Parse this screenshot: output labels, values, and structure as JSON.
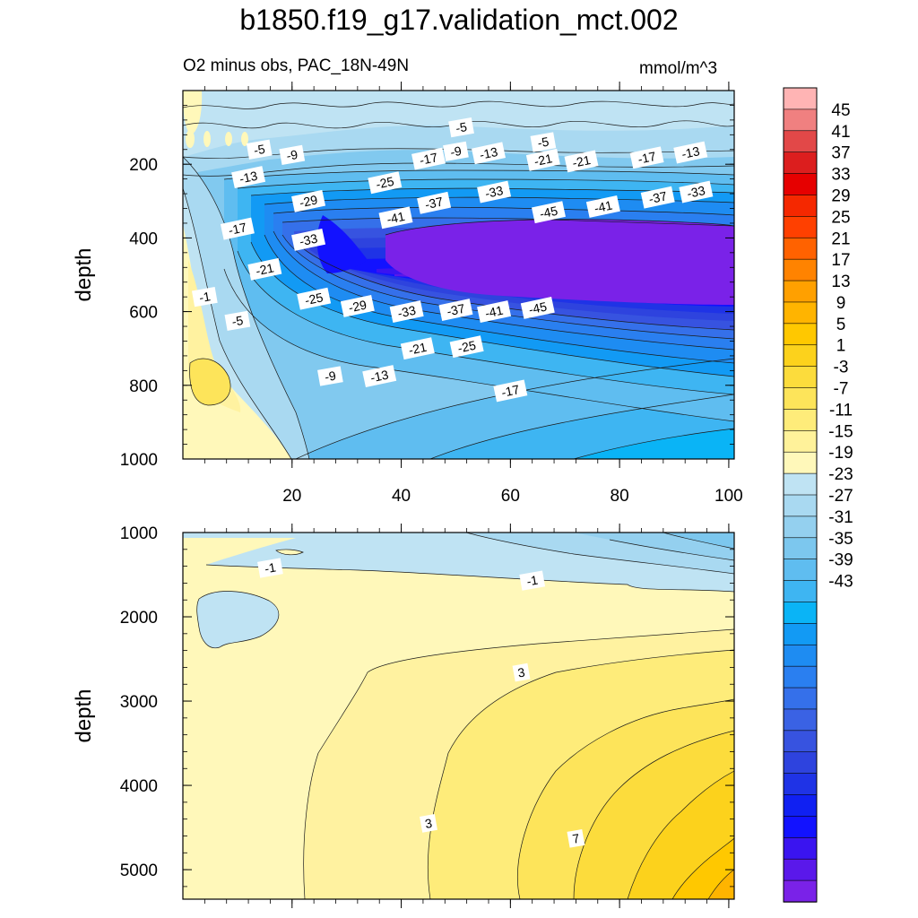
{
  "chart_data": [
    {
      "type": "contour",
      "title": "b1850.f19_g17.validation_mct.002",
      "subtitle": "O2 minus obs, PAC_18N-49N",
      "units": "mmol/m^3",
      "ylabel": "depth",
      "xlabel": "",
      "panels": [
        {
          "name": "upper",
          "ylim": [
            0,
            1000
          ],
          "y_reversed": true,
          "xlim": [
            0,
            101
          ],
          "y_ticks": [
            200,
            400,
            600,
            800,
            1000
          ],
          "x_ticks": [
            20,
            40,
            60,
            80,
            100
          ],
          "contour_labels": [
            {
              "x": 51,
              "y": 100,
              "text": "-5"
            },
            {
              "x": 66,
              "y": 140,
              "text": "-5"
            },
            {
              "x": 14,
              "y": 160,
              "text": "-5"
            },
            {
              "x": 20,
              "y": 175,
              "text": "-9"
            },
            {
              "x": 50,
              "y": 165,
              "text": "-9"
            },
            {
              "x": 56,
              "y": 170,
              "text": "-13"
            },
            {
              "x": 93,
              "y": 168,
              "text": "-13"
            },
            {
              "x": 12,
              "y": 235,
              "text": "-13"
            },
            {
              "x": 45,
              "y": 185,
              "text": "-17"
            },
            {
              "x": 85,
              "y": 182,
              "text": "-17"
            },
            {
              "x": 66,
              "y": 188,
              "text": "-21"
            },
            {
              "x": 73,
              "y": 192,
              "text": "-21"
            },
            {
              "x": 37,
              "y": 250,
              "text": "-25"
            },
            {
              "x": 23,
              "y": 300,
              "text": "-29"
            },
            {
              "x": 57,
              "y": 275,
              "text": "-33"
            },
            {
              "x": 94,
              "y": 275,
              "text": "-33"
            },
            {
              "x": 46,
              "y": 305,
              "text": "-37"
            },
            {
              "x": 87,
              "y": 290,
              "text": "-37"
            },
            {
              "x": 39,
              "y": 345,
              "text": "-41"
            },
            {
              "x": 77,
              "y": 315,
              "text": "-41"
            },
            {
              "x": 67,
              "y": 330,
              "text": "-45"
            },
            {
              "x": 10,
              "y": 375,
              "text": "-17"
            },
            {
              "x": 23,
              "y": 405,
              "text": "-33"
            },
            {
              "x": 15,
              "y": 485,
              "text": "-21"
            },
            {
              "x": 24,
              "y": 565,
              "text": "-25"
            },
            {
              "x": 32,
              "y": 585,
              "text": "-29"
            },
            {
              "x": 41,
              "y": 600,
              "text": "-33"
            },
            {
              "x": 50,
              "y": 595,
              "text": "-37"
            },
            {
              "x": 57,
              "y": 600,
              "text": "-41"
            },
            {
              "x": 65,
              "y": 590,
              "text": "-45"
            },
            {
              "x": 4,
              "y": 560,
              "text": "-1"
            },
            {
              "x": 10,
              "y": 625,
              "text": "-5"
            },
            {
              "x": 43,
              "y": 700,
              "text": "-21"
            },
            {
              "x": 52,
              "y": 695,
              "text": "-25"
            },
            {
              "x": 27,
              "y": 775,
              "text": "-9"
            },
            {
              "x": 36,
              "y": 775,
              "text": "-13"
            },
            {
              "x": 60,
              "y": 815,
              "text": "-17"
            }
          ]
        },
        {
          "name": "lower",
          "ylim": [
            1000,
            5350
          ],
          "y_reversed": true,
          "xlim": [
            0,
            101
          ],
          "y_ticks": [
            1000,
            2000,
            3000,
            4000,
            5000
          ],
          "x_ticks": [
            20,
            40,
            60,
            80,
            100
          ],
          "contour_labels": [
            {
              "x": 16,
              "y": 1420,
              "text": "-1"
            },
            {
              "x": 64,
              "y": 1570,
              "text": "-1"
            },
            {
              "x": 62,
              "y": 2660,
              "text": "3"
            },
            {
              "x": 45,
              "y": 4450,
              "text": "3"
            },
            {
              "x": 72,
              "y": 4630,
              "text": "7"
            }
          ]
        }
      ],
      "colorbar": {
        "labels": [
          "45",
          "41",
          "37",
          "33",
          "29",
          "25",
          "21",
          "17",
          "13",
          "9",
          "5",
          "1",
          "-3",
          "-7",
          "-11",
          "-15",
          "-19",
          "-23",
          "-27",
          "-31",
          "-35",
          "-39",
          "-43"
        ],
        "colors": [
          "#ffb4b4",
          "#f08080",
          "#e24848",
          "#dc1e1e",
          "#e60000",
          "#f52800",
          "#ff4000",
          "#ff6200",
          "#ff8300",
          "#ffa000",
          "#ffb400",
          "#ffc800",
          "#fcd21c",
          "#fcdc3c",
          "#fde45a",
          "#feec7a",
          "#fff29a",
          "#fff8ba",
          "#bfe3f3",
          "#a9d9f1",
          "#94d0ef",
          "#7cc7ee",
          "#5fbdf0",
          "#3eb5f2",
          "#0ab4f6",
          "#129af4",
          "#1e8cf2",
          "#2a7ff0",
          "#3570ea",
          "#3a62e4",
          "#3753e0",
          "#2e43de",
          "#1f33e6",
          "#1020f2",
          "#1212ff",
          "#3a14f0",
          "#5a18ea",
          "#7a22e8"
        ]
      }
    }
  ]
}
